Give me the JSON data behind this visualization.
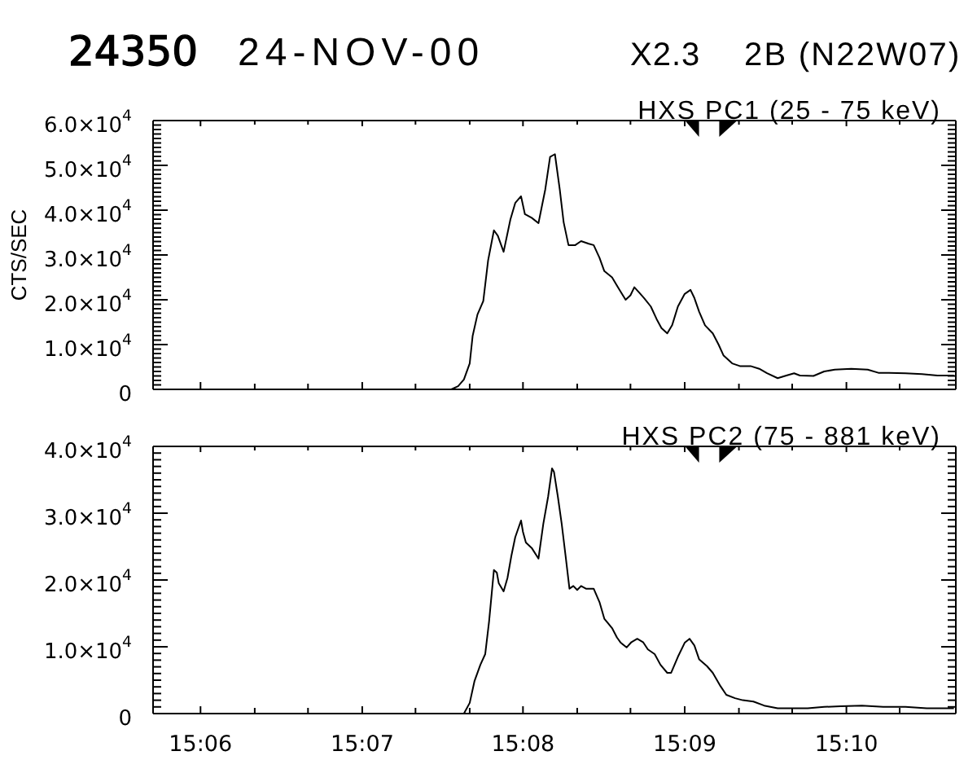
{
  "chart_data": [
    {
      "type": "line",
      "annotations": [
        "24350",
        "24-NOV-00",
        "X2.3",
        "2B (N22W07)"
      ],
      "title": "HXS PC1 (25 - 75 keV)",
      "ylabel": "CTS/SEC",
      "tick_labels": "y",
      "x": [
        15.0951,
        15.11,
        15.12,
        15.1259,
        15.1266,
        15.1272,
        15.1278,
        15.1281,
        15.1286,
        15.1292,
        15.1297,
        15.1303,
        15.1307,
        15.1313,
        15.132,
        15.1325,
        15.1331,
        15.1335,
        15.1342,
        15.1349,
        15.1356,
        15.1361,
        15.1366,
        15.1371,
        15.1375,
        15.138,
        15.1387,
        15.1393,
        15.1401,
        15.1406,
        15.1412,
        15.1417,
        15.1425,
        15.1431,
        15.1439,
        15.1444,
        15.1448,
        15.1453,
        15.1458,
        15.1465,
        15.1471,
        15.1476,
        15.1482,
        15.1487,
        15.1493,
        15.15,
        15.1506,
        15.151,
        15.1515,
        15.1521,
        15.1529,
        15.1535,
        15.154,
        15.1549,
        15.1557,
        15.1568,
        15.1577,
        15.1585,
        15.1596,
        15.1605,
        15.1613,
        15.1619,
        15.1633,
        15.1644,
        15.1655,
        15.1672,
        15.1689,
        15.17,
        15.1711,
        15.1728,
        15.1745,
        15.1761,
        15.1778
      ],
      "series": [
        {
          "color": "#000000",
          "values": [
            0,
            0,
            0,
            0,
            700,
            2200,
            5800,
            11900,
            16700,
            19700,
            28800,
            35500,
            34300,
            30700,
            37900,
            41600,
            43100,
            39100,
            38300,
            37100,
            44600,
            51900,
            52500,
            44600,
            37300,
            32200,
            32200,
            33100,
            32500,
            32200,
            29400,
            26400,
            25000,
            22800,
            20000,
            21000,
            22800,
            21600,
            20400,
            18500,
            15700,
            13700,
            12500,
            14300,
            18500,
            21300,
            22200,
            20400,
            17300,
            14300,
            12500,
            10000,
            7600,
            5800,
            5200,
            5200,
            4600,
            3600,
            2500,
            3100,
            3600,
            3100,
            3000,
            4000,
            4400,
            4600,
            4400,
            3700,
            3700,
            3600,
            3400,
            3100,
            3100
          ]
        }
      ],
      "xlim": [
        15.0951,
        15.178
      ],
      "ylim": [
        0,
        60000
      ],
      "yticks": [
        0,
        {
          "value": 1000,
          "label": null
        },
        {
          "value": 2000,
          "label": null
        },
        {
          "value": 3000,
          "label": null
        },
        {
          "value": 4000,
          "label": null
        },
        {
          "value": 5000,
          "label": null
        },
        {
          "value": 6000,
          "label": null
        },
        {
          "value": 7000,
          "label": null
        },
        {
          "value": 8000,
          "label": null
        },
        {
          "value": 9000,
          "label": null
        },
        {
          "value": 10000,
          "label": "1.0×10$^{4}$"
        },
        {
          "value": 11000,
          "label": null
        },
        {
          "value": 12000,
          "label": null
        },
        {
          "value": 13000,
          "label": null
        },
        {
          "value": 14000,
          "label": null
        },
        {
          "value": 15000,
          "label": null
        },
        {
          "value": 16000,
          "label": null
        },
        {
          "value": 17000,
          "label": null
        },
        {
          "value": 18000,
          "label": null
        },
        {
          "value": 19000,
          "label": null
        },
        {
          "value": 20000,
          "label": "2.0×10$^{4}$"
        },
        {
          "value": 21000,
          "label": null
        },
        {
          "value": 22000,
          "label": null
        },
        {
          "value": 23000,
          "label": null
        },
        {
          "value": 24000,
          "label": null
        },
        {
          "value": 25000,
          "label": null
        },
        {
          "value": 26000,
          "label": null
        },
        {
          "value": 27000,
          "label": null
        },
        {
          "value": 28000,
          "label": null
        },
        {
          "value": 29000,
          "label": null
        },
        {
          "value": 30000,
          "label": "3.0×10$^{4}$"
        },
        {
          "value": 31000,
          "label": null
        },
        {
          "value": 32000,
          "label": null
        },
        {
          "value": 33000,
          "label": null
        },
        {
          "value": 34000,
          "label": null
        },
        {
          "value": 35000,
          "label": null
        },
        {
          "value": 36000,
          "label": null
        },
        {
          "value": 37000,
          "label": null
        },
        {
          "value": 38000,
          "label": null
        },
        {
          "value": 39000,
          "label": null
        },
        {
          "value": 40000,
          "label": "4.0×10$^{4}$"
        },
        {
          "value": 41000,
          "label": null
        },
        {
          "value": 42000,
          "label": null
        },
        {
          "value": 43000,
          "label": null
        },
        {
          "value": 44000,
          "label": null
        },
        {
          "value": 45000,
          "label": null
        },
        {
          "value": 46000,
          "label": null
        },
        {
          "value": 47000,
          "label": null
        },
        {
          "value": 48000,
          "label": null
        },
        {
          "value": 49000,
          "label": null
        },
        {
          "value": 50000,
          "label": "5.0×10$^{4}$"
        },
        {
          "value": 51000,
          "label": null
        },
        {
          "value": 52000,
          "label": null
        },
        {
          "value": 53000,
          "label": null
        },
        {
          "value": 54000,
          "label": null
        },
        {
          "value": 55000,
          "label": null
        },
        {
          "value": 56000,
          "label": null
        },
        {
          "value": 57000,
          "label": null
        },
        {
          "value": 58000,
          "label": null
        },
        {
          "value": 59000,
          "label": null
        },
        {
          "value": 60000,
          "label": "6.0×10$^{4}$"
        }
      ]
    },
    {
      "type": "line",
      "title": "HXS PC2 (75 - 881 keV)",
      "x": [
        15.0951,
        15.11,
        15.12,
        15.1272,
        15.1278,
        15.1283,
        15.1289,
        15.1294,
        15.1298,
        15.1303,
        15.1306,
        15.1308,
        15.1313,
        15.1317,
        15.1321,
        15.1325,
        15.1331,
        15.1333,
        15.1336,
        15.1342,
        15.1349,
        15.1354,
        15.1359,
        15.1363,
        15.1365,
        15.1369,
        15.1373,
        15.1377,
        15.1381,
        15.1385,
        15.1389,
        15.1393,
        15.1398,
        15.1406,
        15.1412,
        15.1417,
        15.1425,
        15.143,
        15.1434,
        15.144,
        15.1445,
        15.1451,
        15.1457,
        15.1462,
        15.1469,
        15.1475,
        15.1482,
        15.1486,
        15.1493,
        15.15,
        15.1505,
        15.151,
        15.1515,
        15.1523,
        15.1529,
        15.1537,
        15.1543,
        15.1552,
        15.156,
        15.1571,
        15.1582,
        15.1596,
        15.161,
        15.1627,
        15.1644,
        15.1661,
        15.1683,
        15.1705,
        15.1728,
        15.175,
        15.1778
      ],
      "series": [
        {
          "color": "#000000",
          "values": [
            0,
            0,
            0,
            0,
            1600,
            4900,
            7300,
            8900,
            13800,
            21500,
            21100,
            19500,
            18300,
            20300,
            23600,
            26400,
            28900,
            27200,
            25600,
            24800,
            23200,
            28400,
            32500,
            36700,
            36200,
            32500,
            28400,
            23600,
            18700,
            19100,
            18500,
            19100,
            18700,
            18700,
            16700,
            14200,
            12800,
            11400,
            10600,
            9900,
            10700,
            11200,
            10700,
            9600,
            8900,
            7300,
            6100,
            6100,
            8500,
            10600,
            11200,
            10200,
            8100,
            7100,
            6100,
            4100,
            2800,
            2300,
            2000,
            1800,
            1200,
            800,
            800,
            800,
            1000,
            1100,
            1200,
            1000,
            1000,
            800,
            800
          ]
        }
      ],
      "xlim": [
        15.0951,
        15.178
      ],
      "xticks": [
        {
          "value": 15.1,
          "label": "15:06"
        },
        {
          "value": 15.1056,
          "label": null
        },
        {
          "value": 15.1111,
          "label": null
        },
        {
          "value": 15.1167,
          "label": "15:07"
        },
        {
          "value": 15.1222,
          "label": null
        },
        {
          "value": 15.1278,
          "label": null
        },
        {
          "value": 15.1333,
          "label": "15:08"
        },
        {
          "value": 15.1389,
          "label": null
        },
        {
          "value": 15.1444,
          "label": null
        },
        {
          "value": 15.15,
          "label": "15:09"
        },
        {
          "value": 15.1556,
          "label": null
        },
        {
          "value": 15.1611,
          "label": null
        },
        {
          "value": 15.1667,
          "label": "15:10"
        },
        {
          "value": 15.1722,
          "label": null
        }
      ],
      "ylim": [
        0,
        40000
      ],
      "yticks": [
        0,
        {
          "value": 1000,
          "label": null
        },
        {
          "value": 2000,
          "label": null
        },
        {
          "value": 3000,
          "label": null
        },
        {
          "value": 4000,
          "label": null
        },
        {
          "value": 5000,
          "label": null
        },
        {
          "value": 6000,
          "label": null
        },
        {
          "value": 7000,
          "label": null
        },
        {
          "value": 8000,
          "label": null
        },
        {
          "value": 9000,
          "label": null
        },
        {
          "value": 10000,
          "label": "1.0×10$^{4}$"
        },
        {
          "value": 11000,
          "label": null
        },
        {
          "value": 12000,
          "label": null
        },
        {
          "value": 13000,
          "label": null
        },
        {
          "value": 14000,
          "label": null
        },
        {
          "value": 15000,
          "label": null
        },
        {
          "value": 16000,
          "label": null
        },
        {
          "value": 17000,
          "label": null
        },
        {
          "value": 18000,
          "label": null
        },
        {
          "value": 19000,
          "label": null
        },
        {
          "value": 20000,
          "label": "2.0×10$^{4}$"
        },
        {
          "value": 21000,
          "label": null
        },
        {
          "value": 22000,
          "label": null
        },
        {
          "value": 23000,
          "label": null
        },
        {
          "value": 24000,
          "label": null
        },
        {
          "value": 25000,
          "label": null
        },
        {
          "value": 26000,
          "label": null
        },
        {
          "value": 27000,
          "label": null
        },
        {
          "value": 28000,
          "label": null
        },
        {
          "value": 29000,
          "label": null
        },
        {
          "value": 30000,
          "label": "3.0×10$^{4}$"
        },
        {
          "value": 31000,
          "label": null
        },
        {
          "value": 32000,
          "label": null
        },
        {
          "value": 33000,
          "label": null
        },
        {
          "value": 34000,
          "label": null
        },
        {
          "value": 35000,
          "label": null
        },
        {
          "value": 36000,
          "label": null
        },
        {
          "value": 37000,
          "label": null
        },
        {
          "value": 38000,
          "label": null
        },
        {
          "value": 39000,
          "label": null
        },
        {
          "value": 40000,
          "label": "4.0×10$^{4}$"
        }
      ]
    }
  ]
}
